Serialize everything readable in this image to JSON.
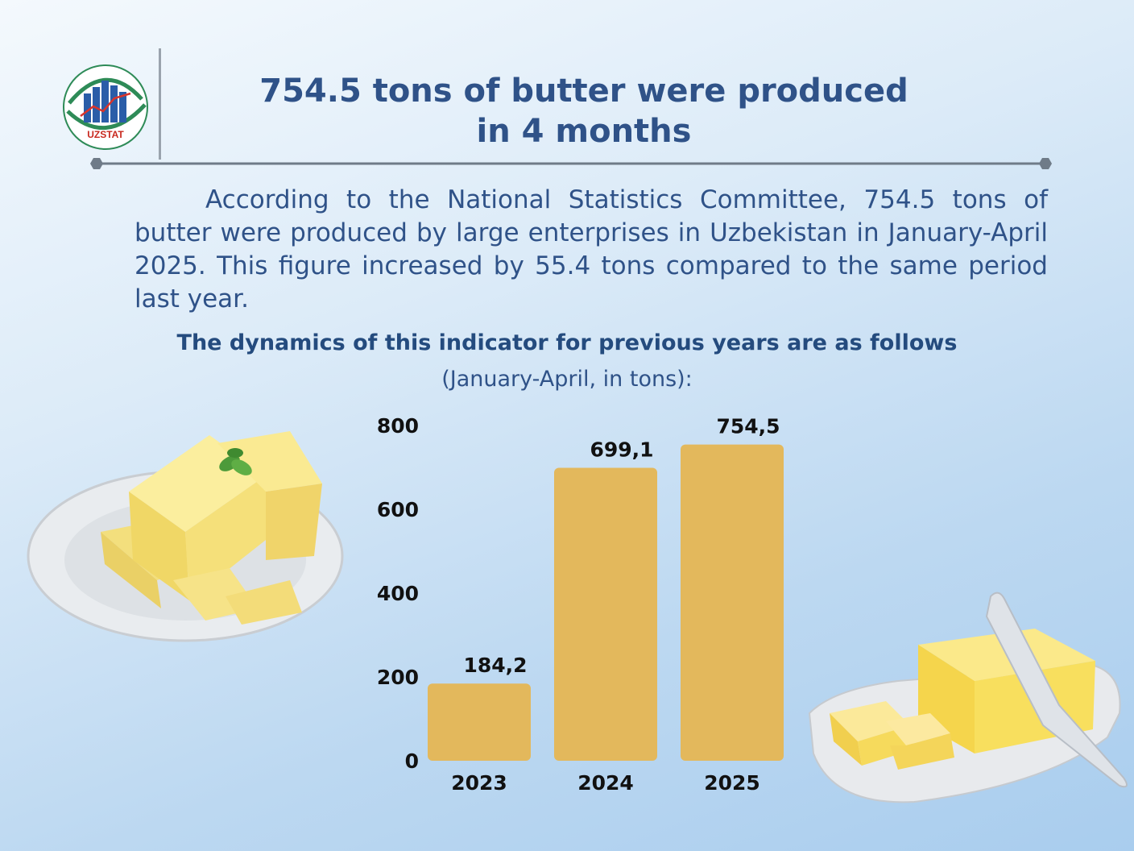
{
  "header": {
    "logo_text": "UZSTAT",
    "title_line1": "754.5 tons of butter were produced",
    "title_line2": "in 4 months"
  },
  "intro_text": "According to the National Statistics Committee, 754.5 tons of butter were produced by large enterprises in Uzbekistan in January-April 2025. This figure increased by 55.4 tons compared to the same period last year.",
  "chart_subtitle": "The dynamics of this indicator for previous years are as follows",
  "chart_unit": "(January-April, in tons):",
  "colors": {
    "title": "#2f5288",
    "bar": "#e3b85c",
    "divider": "#6f7b88"
  },
  "chart_data": {
    "type": "bar",
    "categories": [
      "2023",
      "2024",
      "2025"
    ],
    "values": [
      184.2,
      699.1,
      754.5
    ],
    "value_labels": [
      "184,2",
      "699,1",
      "754,5"
    ],
    "title": "The dynamics of this indicator for previous years are as follows",
    "subtitle": "(January-April, in tons):",
    "xlabel": "",
    "ylabel": "",
    "ylim": [
      0,
      800
    ],
    "yticks": [
      0,
      200,
      400,
      600,
      800
    ],
    "grid": false,
    "legend": "none"
  }
}
